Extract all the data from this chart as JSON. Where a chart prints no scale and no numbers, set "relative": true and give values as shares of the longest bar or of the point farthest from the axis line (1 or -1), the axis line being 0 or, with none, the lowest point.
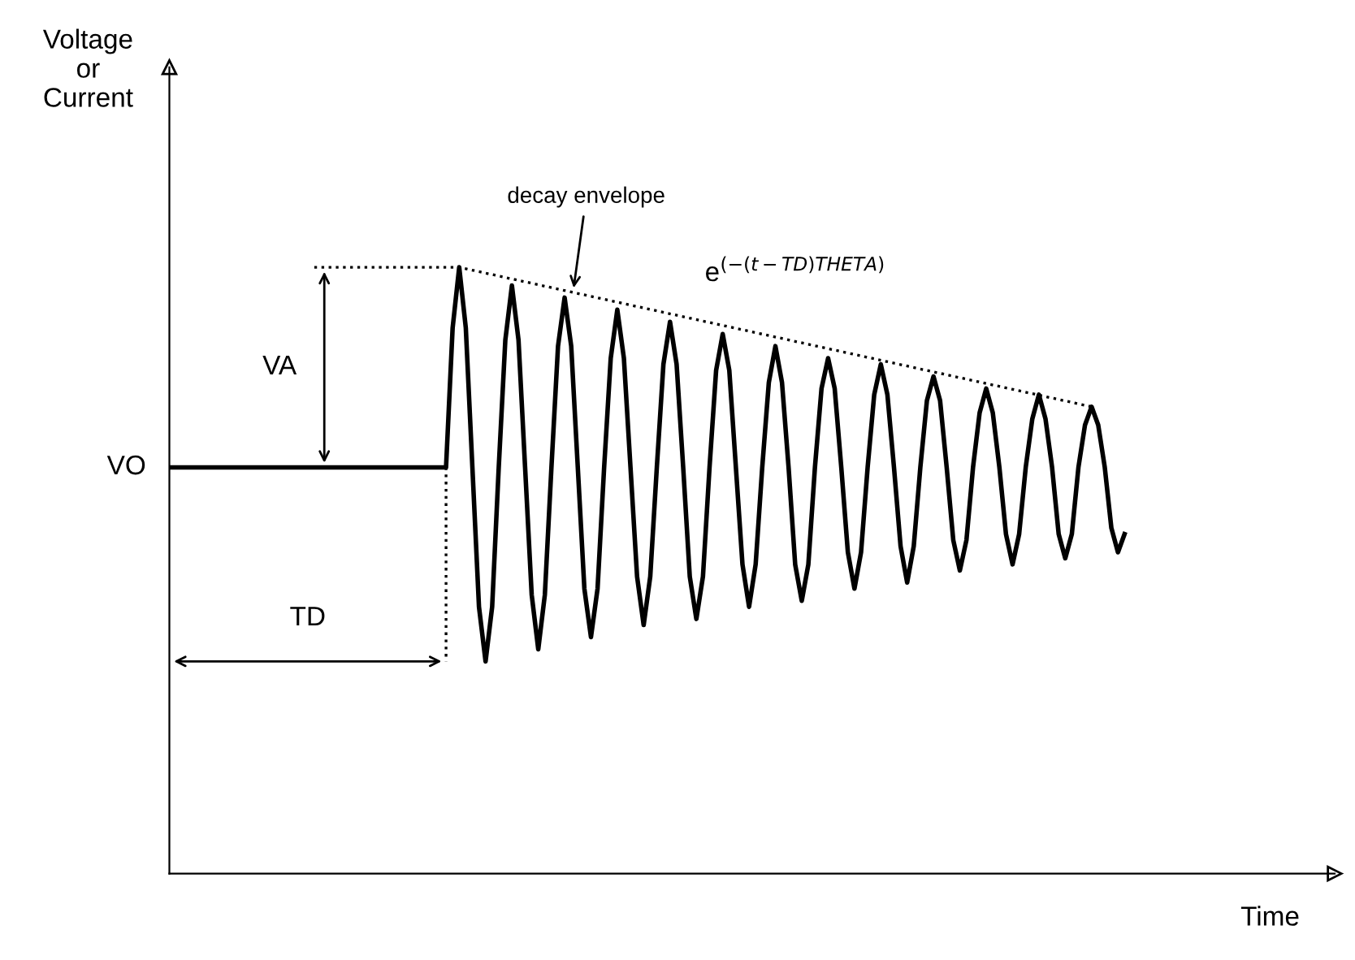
{
  "chart_data": {
    "type": "line",
    "relative": true,
    "xlabel": "Time",
    "annotations": [
      "VO",
      "VA",
      "TD",
      "decay envelope",
      "e$^{(−(t−TD)THETA)}$",
      "Voltage\nor\nCurrent"
    ],
    "categories": [
      null,
      null,
      null,
      null,
      null,
      null,
      null,
      null,
      null,
      null,
      null,
      null,
      null,
      null,
      null,
      null,
      null,
      null,
      null,
      null,
      null,
      null,
      null,
      null,
      null,
      null,
      null,
      null,
      null,
      null,
      null,
      null,
      null,
      null,
      null,
      null,
      null,
      null,
      null,
      null,
      null,
      null,
      null,
      null,
      null,
      null,
      null,
      null,
      null,
      null,
      null,
      null,
      null,
      null,
      null,
      null,
      null,
      null,
      null,
      null,
      null,
      null,
      null,
      null,
      null,
      null,
      null,
      null,
      null,
      null,
      null,
      null,
      null,
      null,
      null,
      null,
      null,
      null,
      null,
      null,
      null,
      null,
      null,
      null,
      null,
      null,
      null,
      null,
      null,
      null,
      null,
      null,
      null,
      null,
      null,
      null,
      null,
      null,
      null,
      null,
      null,
      null,
      null,
      null,
      null,
      null,
      null,
      null,
      null,
      null,
      null,
      null,
      null,
      null,
      null,
      null,
      null,
      null,
      null,
      null,
      null,
      null,
      null,
      null,
      null,
      null,
      null,
      null,
      null,
      null,
      null,
      null,
      null,
      null,
      null,
      null,
      null,
      null,
      null,
      null,
      null,
      null,
      null,
      null,
      null,
      null
    ],
    "series": [
      {
        "color": "#000000",
        "line_style": "solid",
        "values": [
          0.67,
          0.67,
          0.67,
          0.67,
          0.67,
          0.67,
          0.67,
          0.67,
          0.67,
          0.67,
          0.67,
          0.67,
          0.67,
          0.67,
          0.67,
          0.67,
          0.67,
          0.67,
          0.67,
          0.67,
          0.67,
          0.67,
          0.67,
          0.67,
          0.67,
          0.67,
          0.67,
          0.67,
          0.67,
          0.67,
          0.67,
          0.67,
          0.67,
          0.67,
          0.67,
          0.67,
          0.67,
          0.67,
          0.67,
          0.67,
          0.67,
          0.67,
          0.67,
          0.9,
          1.0,
          0.9,
          0.67,
          0.44,
          0.35,
          0.44,
          0.67,
          0.88,
          0.97,
          0.88,
          0.67,
          0.46,
          0.37,
          0.46,
          0.67,
          0.87,
          0.95,
          0.87,
          0.67,
          0.47,
          0.39,
          0.47,
          0.67,
          0.85,
          0.93,
          0.85,
          0.67,
          0.49,
          0.41,
          0.49,
          0.67,
          0.84,
          0.91,
          0.84,
          0.67,
          0.49,
          0.42,
          0.49,
          0.67,
          0.83,
          0.89,
          0.83,
          0.67,
          0.51,
          0.44,
          0.51,
          0.67,
          0.81,
          0.87,
          0.81,
          0.67,
          0.51,
          0.45,
          0.51,
          0.67,
          0.8,
          0.85,
          0.8,
          0.67,
          0.53,
          0.47,
          0.53,
          0.67,
          0.79,
          0.84,
          0.79,
          0.67,
          0.54,
          0.48,
          0.54,
          0.67,
          0.78,
          0.82,
          0.78,
          0.67,
          0.55,
          0.5,
          0.55,
          0.67,
          0.76,
          0.8,
          0.76,
          0.67,
          0.56,
          0.51,
          0.56,
          0.67,
          0.75,
          0.79,
          0.75,
          0.67,
          0.56,
          0.52,
          0.56,
          0.67,
          0.74,
          0.77,
          0.74,
          0.67,
          0.57,
          0.53,
          0.56
        ]
      },
      {
        "color": "#000000",
        "line_style": "dotted",
        "values": [
          null,
          null,
          null,
          null,
          null,
          null,
          null,
          null,
          null,
          null,
          null,
          null,
          null,
          null,
          null,
          null,
          null,
          null,
          null,
          null,
          null,
          null,
          1.0,
          null,
          null,
          null,
          null,
          null,
          null,
          null,
          null,
          null,
          null,
          null,
          null,
          null,
          null,
          null,
          null,
          null,
          null,
          null,
          null,
          null,
          1.0,
          null,
          null,
          null,
          null,
          null,
          null,
          null,
          null,
          null,
          null,
          null,
          null,
          null,
          null,
          null,
          null,
          null,
          null,
          null,
          null,
          null,
          null,
          null,
          null,
          null,
          null,
          null,
          null,
          null,
          null,
          null,
          null,
          null,
          null,
          null,
          null,
          null,
          null,
          null,
          null,
          null,
          null,
          null,
          null,
          null,
          null,
          null,
          null,
          null,
          null,
          null,
          null,
          null,
          null,
          null,
          null,
          null,
          null,
          null,
          null,
          null,
          null,
          null,
          null,
          null,
          null,
          null,
          null,
          null,
          null,
          null,
          null,
          null,
          null,
          null,
          null,
          null,
          null,
          null,
          null,
          null,
          null,
          null,
          null,
          null,
          null,
          null,
          null,
          null,
          null,
          null,
          null,
          null,
          null,
          null,
          0.77,
          null,
          null,
          null,
          null,
          null
        ]
      }
    ]
  }
}
